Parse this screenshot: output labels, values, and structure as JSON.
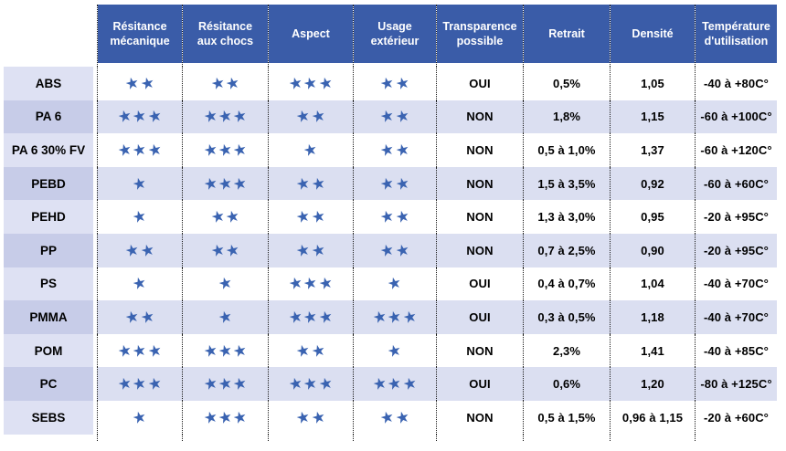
{
  "table": {
    "columns": [
      "Résitance mécanique",
      "Résitance aux chocs",
      "Aspect",
      "Usage extérieur",
      "Transparence possible",
      "Retrait",
      "Densité",
      "Température d'utilisation"
    ],
    "star_columns_count": 4,
    "rows": [
      {
        "label": "ABS",
        "stars": [
          2,
          2,
          3,
          2
        ],
        "transparence": "OUI",
        "retrait": "0,5%",
        "densite": "1,05",
        "temperature": "-40 à +80C°"
      },
      {
        "label": "PA 6",
        "stars": [
          3,
          3,
          2,
          2
        ],
        "transparence": "NON",
        "retrait": "1,8%",
        "densite": "1,15",
        "temperature": "-60 à +100C°"
      },
      {
        "label": "PA 6 30% FV",
        "stars": [
          3,
          3,
          1,
          2
        ],
        "transparence": "NON",
        "retrait": "0,5 à 1,0%",
        "densite": "1,37",
        "temperature": "-60 à +120C°"
      },
      {
        "label": "PEBD",
        "stars": [
          1,
          3,
          2,
          2
        ],
        "transparence": "NON",
        "retrait": "1,5 à 3,5%",
        "densite": "0,92",
        "temperature": "-60 à +60C°"
      },
      {
        "label": "PEHD",
        "stars": [
          1,
          2,
          2,
          2
        ],
        "transparence": "NON",
        "retrait": "1,3 à 3,0%",
        "densite": "0,95",
        "temperature": "-20 à +95C°"
      },
      {
        "label": "PP",
        "stars": [
          2,
          2,
          2,
          2
        ],
        "transparence": "NON",
        "retrait": "0,7 à 2,5%",
        "densite": "0,90",
        "temperature": "-20 à +95C°"
      },
      {
        "label": "PS",
        "stars": [
          1,
          1,
          3,
          1
        ],
        "transparence": "OUI",
        "retrait": "0,4 à 0,7%",
        "densite": "1,04",
        "temperature": "-40 à +70C°"
      },
      {
        "label": "PMMA",
        "stars": [
          2,
          1,
          3,
          3
        ],
        "transparence": "OUI",
        "retrait": "0,3 à 0,5%",
        "densite": "1,18",
        "temperature": "-40 à +70C°"
      },
      {
        "label": "POM",
        "stars": [
          3,
          3,
          2,
          1
        ],
        "transparence": "NON",
        "retrait": "2,3%",
        "densite": "1,41",
        "temperature": "-40 à +85C°"
      },
      {
        "label": "PC",
        "stars": [
          3,
          3,
          3,
          3
        ],
        "transparence": "OUI",
        "retrait": "0,6%",
        "densite": "1,20",
        "temperature": "-80 à +125C°"
      },
      {
        "label": "SEBS",
        "stars": [
          1,
          3,
          2,
          2
        ],
        "transparence": "NON",
        "retrait": "0,5 à 1,5%",
        "densite": "0,96 à 1,15",
        "temperature": "-20 à +60C°"
      }
    ]
  },
  "star_char": "★",
  "colors": {
    "header_bg": "#3a5ca8",
    "row_label_light": "#dee1f3",
    "row_label_dark": "#c7cce8",
    "row_tint": "#dbdff1",
    "star": "#3a63b1",
    "separator_dots": "#1a1a1a",
    "text": "#000000"
  }
}
